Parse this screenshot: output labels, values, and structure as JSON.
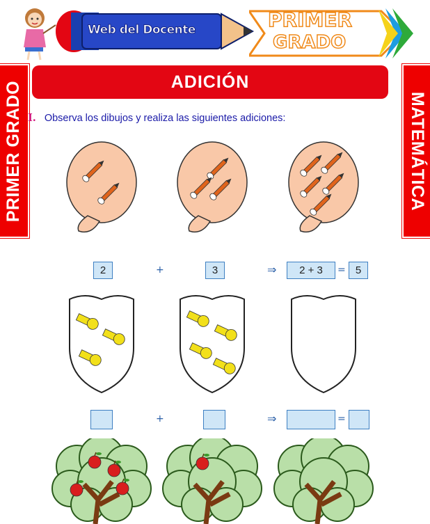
{
  "header": {
    "logo_text": "Web del Docente",
    "grade_line1": "PRIMER",
    "grade_line2": "GRADO"
  },
  "side_left": "PRIMER GRADO",
  "side_right": "MATEMÁTICA",
  "title": "ADICIÓN",
  "instruction": {
    "number": "I.",
    "text": "Observa los dibujos y realiza las siguientes adiciones:"
  },
  "row1": {
    "counts": [
      2,
      3,
      5
    ],
    "first": "2",
    "plus": "+",
    "second": "3",
    "arrow": "⇒",
    "expression": "2 + 3",
    "equals": "=",
    "result": "5"
  },
  "row2": {
    "counts": [
      3,
      4,
      0
    ],
    "plus": "+",
    "arrow": "⇒",
    "equals": "=",
    "first": "",
    "second": "",
    "expression": "",
    "result": ""
  },
  "row3": {
    "apple_counts": [
      4,
      1,
      0
    ]
  },
  "colors": {
    "red": "#e30613",
    "blue_text": "#1a1aa8",
    "box_fill": "#cfe6f7",
    "box_border": "#3d7fc2",
    "balloon": "#f9c8a8",
    "whistle": "#f2e01a"
  }
}
